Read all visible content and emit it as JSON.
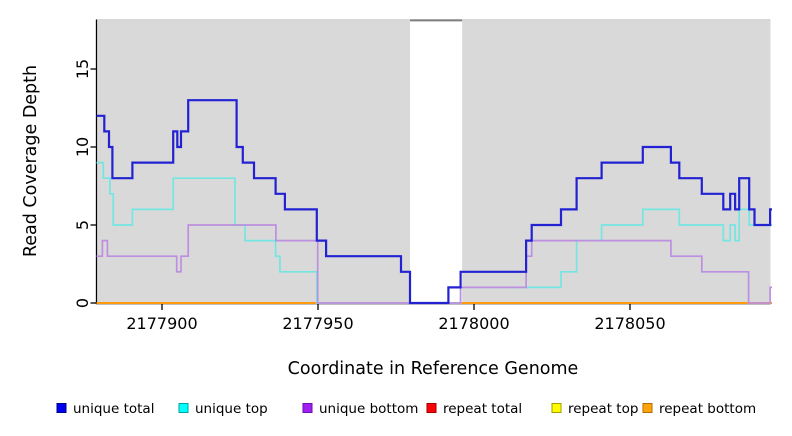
{
  "page": {
    "background": "#ffffff"
  },
  "chart_data": {
    "type": "line",
    "subtype": "step-after",
    "title": "",
    "xlabel": "Coordinate in Reference Genome",
    "ylabel": "Read Coverage Depth",
    "x_ticks": [
      2177900,
      2177950,
      2178000,
      2178050
    ],
    "x_tick_labels": [
      "2177900",
      "2177950",
      "2178000",
      "2178050"
    ],
    "y_ticks": [
      0,
      5,
      10,
      15
    ],
    "y_tick_labels": [
      "0",
      "5",
      "10",
      "15"
    ],
    "xlim": [
      2177879,
      2178095.5
    ],
    "ylim": [
      0,
      18.2
    ],
    "grid": false,
    "plot_background": "#d9d9d9",
    "masked_region": {
      "from": 2177979.5,
      "to": 2177996.2,
      "fill": "#ffffff",
      "top_border": "#7f7f7f"
    },
    "series": [
      {
        "name": "unique total",
        "color": "#2222d2",
        "width": 2.2,
        "steps": [
          [
            2177879,
            12
          ],
          [
            2177881.5,
            11
          ],
          [
            2177883,
            10
          ],
          [
            2177884.1,
            8
          ],
          [
            2177890.5,
            9
          ],
          [
            2177903.6,
            11
          ],
          [
            2177904.9,
            10
          ],
          [
            2177906.1,
            11
          ],
          [
            2177908.4,
            13
          ],
          [
            2177923.9,
            10
          ],
          [
            2177925.9,
            9
          ],
          [
            2177929.5,
            8
          ],
          [
            2177936.4,
            7
          ],
          [
            2177939.4,
            6
          ],
          [
            2177949.6,
            4
          ],
          [
            2177952.6,
            3
          ],
          [
            2177976.6,
            2
          ],
          [
            2177979.5,
            0
          ],
          [
            2177991.8,
            1
          ],
          [
            2177995.7,
            2
          ],
          [
            2178016.7,
            4
          ],
          [
            2178018.5,
            5
          ],
          [
            2178027.9,
            6
          ],
          [
            2178032.9,
            8
          ],
          [
            2178040.9,
            9
          ],
          [
            2178054.1,
            10
          ],
          [
            2178063.1,
            9
          ],
          [
            2178065.8,
            8
          ],
          [
            2178073,
            7
          ],
          [
            2178079.9,
            6
          ],
          [
            2178082.1,
            7
          ],
          [
            2178083.7,
            6
          ],
          [
            2178085,
            8
          ],
          [
            2178088.2,
            6
          ],
          [
            2178089.9,
            5
          ],
          [
            2178094.9,
            6
          ]
        ],
        "end": 2178095.5
      },
      {
        "name": "unique top",
        "color": "#74e6e2",
        "width": 1.7,
        "steps": [
          [
            2177879,
            9
          ],
          [
            2177881.2,
            8
          ],
          [
            2177883.3,
            7
          ],
          [
            2177884.4,
            5
          ],
          [
            2177890.5,
            6
          ],
          [
            2177903.6,
            8
          ],
          [
            2177923.4,
            5
          ],
          [
            2177926.6,
            4
          ],
          [
            2177936.4,
            3
          ],
          [
            2177937.8,
            2
          ],
          [
            2177949.6,
            0
          ],
          [
            2177995.7,
            1
          ],
          [
            2178027.9,
            2
          ],
          [
            2178032.9,
            4
          ],
          [
            2178040.9,
            5
          ],
          [
            2178054.1,
            6
          ],
          [
            2178065.8,
            5
          ],
          [
            2178079.9,
            4
          ],
          [
            2178082.1,
            5
          ],
          [
            2178083.7,
            4
          ],
          [
            2178085,
            6
          ],
          [
            2178088.2,
            5
          ]
        ],
        "end": 2178095.5
      },
      {
        "name": "unique bottom",
        "color": "#bd8fe0",
        "width": 1.7,
        "steps": [
          [
            2177879,
            3
          ],
          [
            2177880.9,
            4
          ],
          [
            2177882.5,
            3
          ],
          [
            2177904.7,
            2
          ],
          [
            2177906.1,
            3
          ],
          [
            2177908.4,
            5
          ],
          [
            2177936.5,
            4
          ],
          [
            2177949.9,
            0
          ],
          [
            2177995.7,
            1
          ],
          [
            2178016.7,
            3
          ],
          [
            2178018.5,
            4
          ],
          [
            2178063.1,
            3
          ],
          [
            2178073,
            2
          ],
          [
            2178088,
            0
          ],
          [
            2178094.9,
            1
          ]
        ],
        "end": 2178095.5
      },
      {
        "name": "repeat total",
        "color": "#ff0000",
        "width": 1.5,
        "steps": [
          [
            2177879,
            0
          ]
        ],
        "end": 2178095.5
      },
      {
        "name": "repeat top",
        "color": "#ffff00",
        "width": 1.5,
        "steps": [
          [
            2177879,
            0
          ]
        ],
        "end": 2178095.5
      },
      {
        "name": "repeat bottom",
        "color": "#ff9a0e",
        "width": 2,
        "steps": [
          [
            2177879,
            0
          ]
        ],
        "end": 2178095.5
      }
    ]
  },
  "legend": {
    "items": [
      {
        "label": "unique total",
        "fill": "#0000ee",
        "border": "#00008b"
      },
      {
        "label": "unique top",
        "fill": "#00ffff",
        "border": "#00a3a3"
      },
      {
        "label": "unique bottom",
        "fill": "#a020f0",
        "border": "#700dbb"
      },
      {
        "label": "repeat total",
        "fill": "#fb0007",
        "border": "#a00000"
      },
      {
        "label": "repeat top",
        "fill": "#fffb00",
        "border": "#a0a000"
      },
      {
        "label": "repeat bottom",
        "fill": "#ffa408",
        "border": "#b06f00"
      }
    ]
  }
}
